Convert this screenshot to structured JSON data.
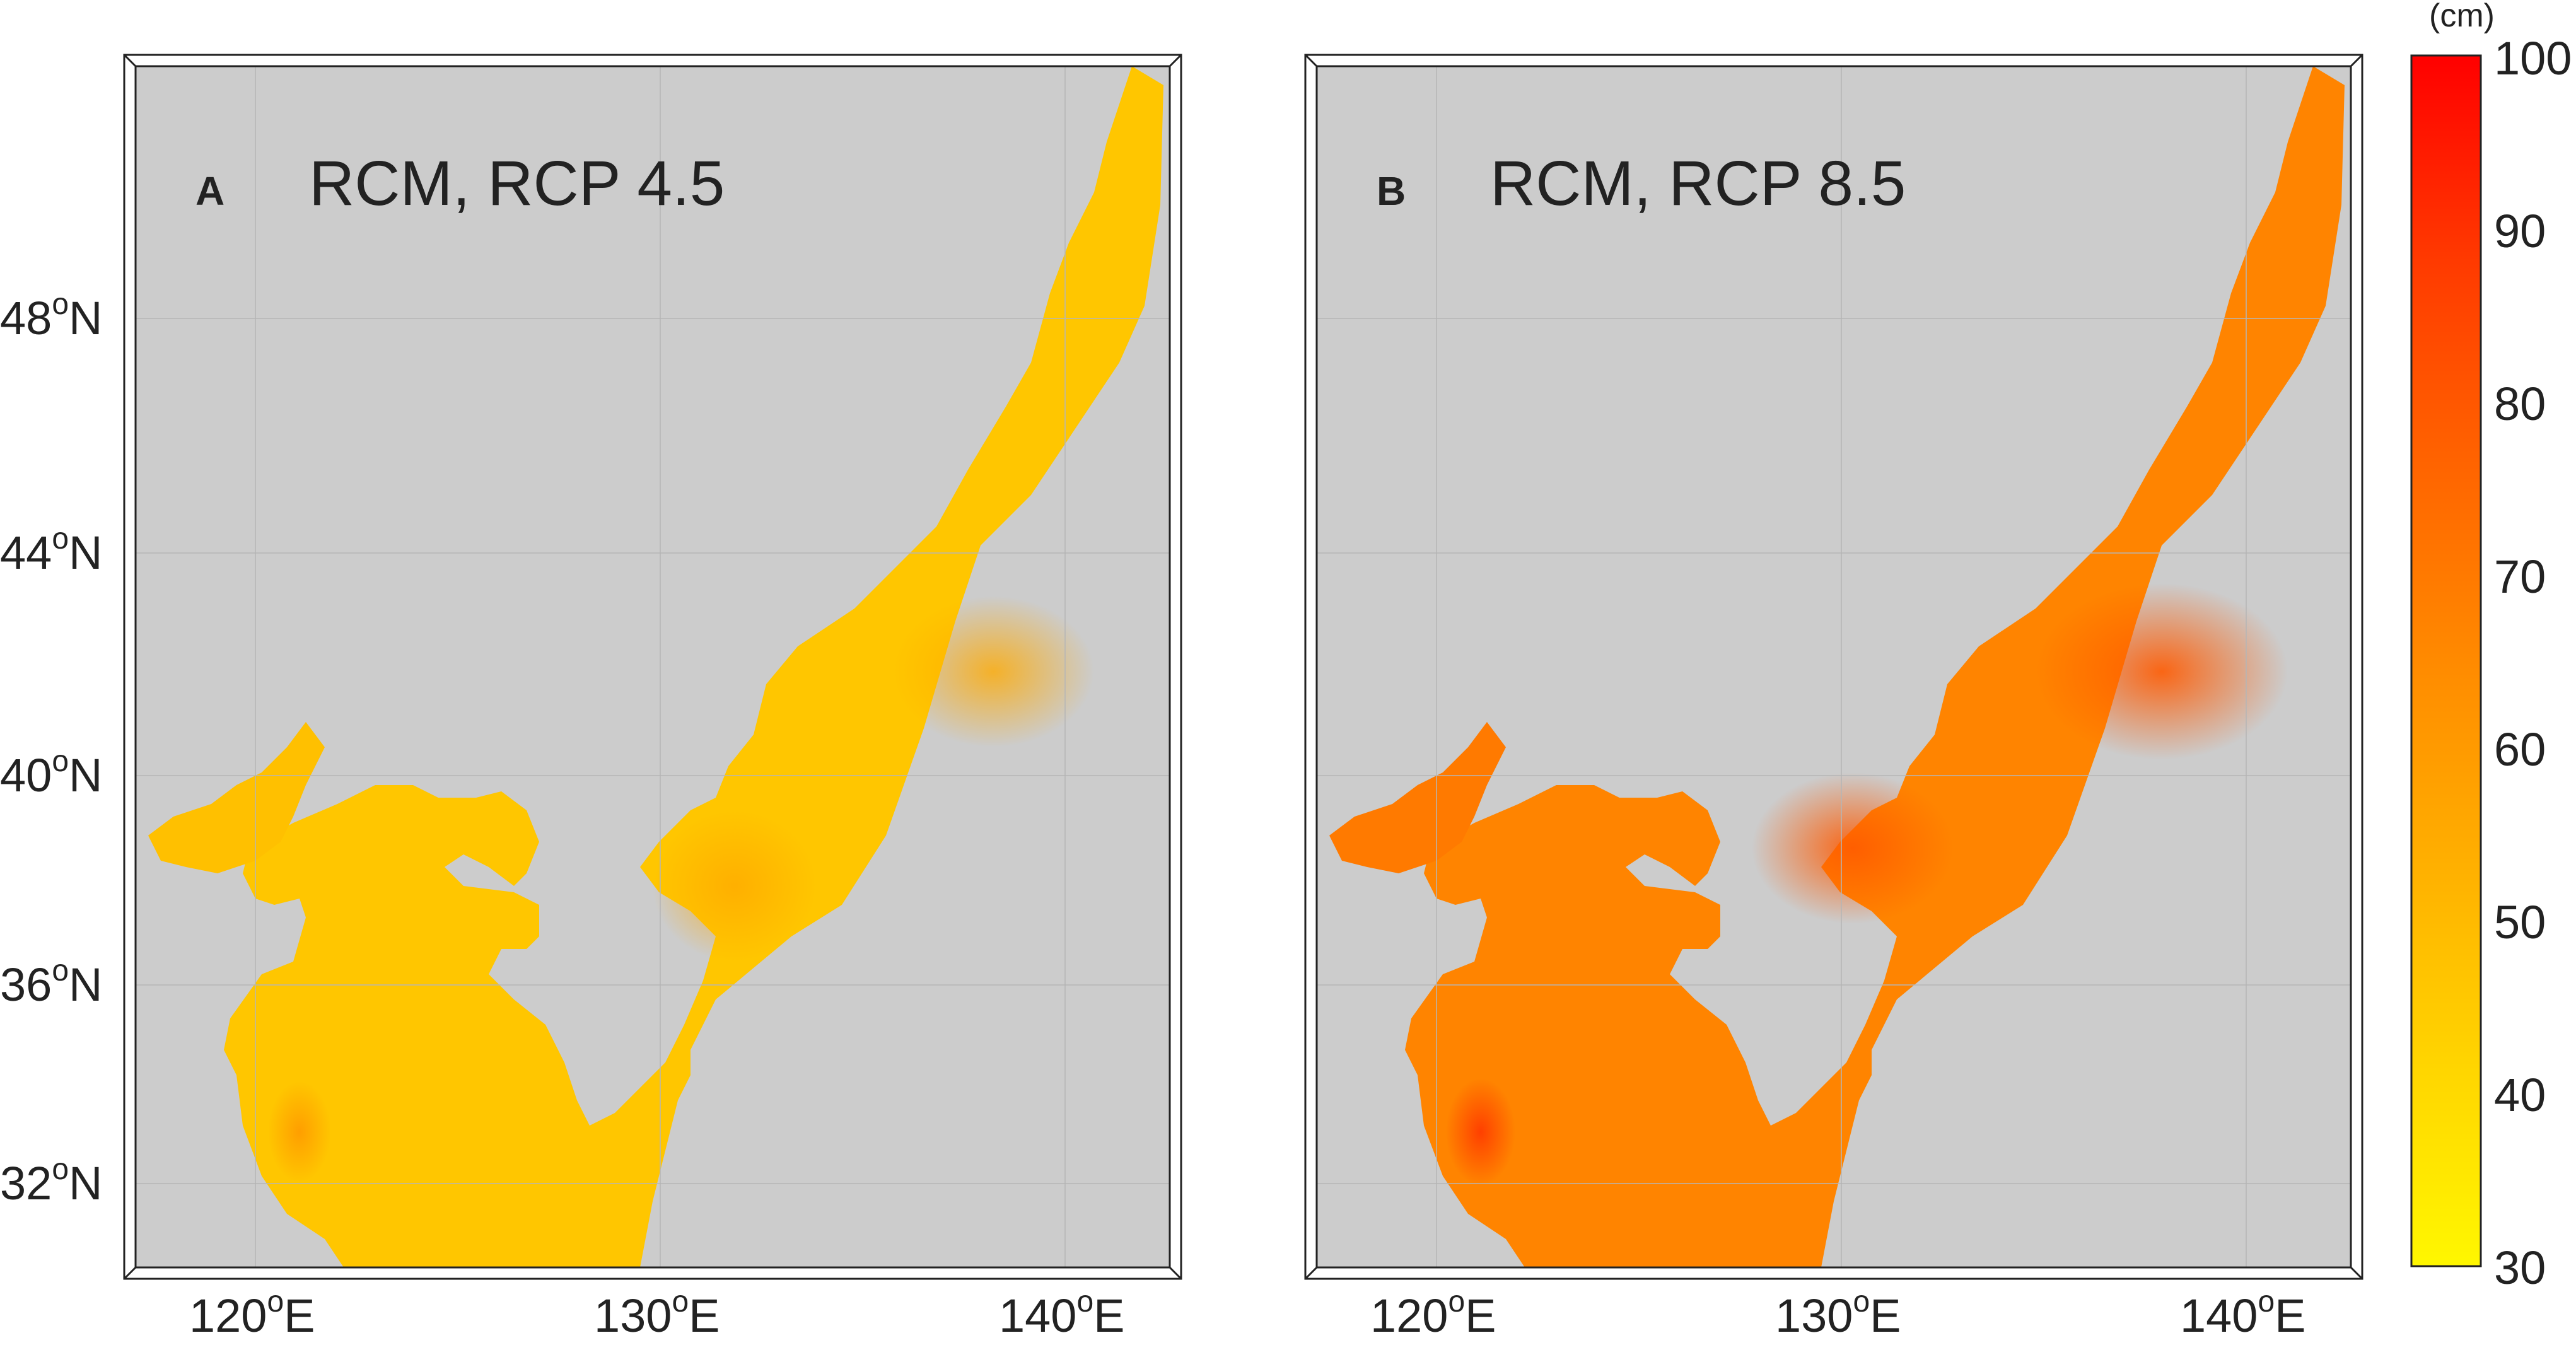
{
  "panels": [
    {
      "letter": "A",
      "title": "RCM, RCP 4.5"
    },
    {
      "letter": "B",
      "title": "RCM, RCP 8.5"
    }
  ],
  "lat_labels": [
    {
      "deg": "48",
      "hemi": "N",
      "lat": 48
    },
    {
      "deg": "44",
      "hemi": "N",
      "lat": 44
    },
    {
      "deg": "40",
      "hemi": "N",
      "lat": 40
    },
    {
      "deg": "36",
      "hemi": "N",
      "lat": 36
    },
    {
      "deg": "32",
      "hemi": "N",
      "lat": 32
    }
  ],
  "lon_labels": [
    {
      "deg": "120",
      "hemi": "E",
      "lon": 120
    },
    {
      "deg": "130",
      "hemi": "E",
      "lon": 130
    },
    {
      "deg": "140",
      "hemi": "E",
      "lon": 140
    }
  ],
  "colorbar": {
    "unit": "(cm)",
    "min": 30,
    "max": 100,
    "ticks": [
      "100",
      "90",
      "80",
      "70",
      "60",
      "50",
      "40",
      "30"
    ],
    "colors": [
      "#fff700",
      "#ffd400",
      "#ffb000",
      "#ff8a00",
      "#ff6200",
      "#ff3a00",
      "#ff0000"
    ]
  },
  "chart_data": {
    "type": "heatmap",
    "description_fields": false,
    "lon_range": [
      117,
      142
    ],
    "lat_range": [
      30.5,
      50.5
    ],
    "color_range": [
      30,
      100
    ],
    "unit": "cm",
    "panels": [
      {
        "letter": "A",
        "title": "RCM, RCP 4.5",
        "typical_value": 48,
        "land_color": "#cccccc",
        "hotspots": [
          {
            "lon": 136.5,
            "lat": 42.0,
            "value": 52
          },
          {
            "lon": 131.5,
            "lat": 37.5,
            "value": 53
          },
          {
            "lon": 121.5,
            "lat": 33.0,
            "value": 58
          }
        ]
      },
      {
        "letter": "B",
        "title": "RCM, RCP 8.5",
        "typical_value": 64,
        "land_color": "#cccccc",
        "hotspots": [
          {
            "lon": 136.5,
            "lat": 42.0,
            "value": 70
          },
          {
            "lon": 129.5,
            "lat": 39.0,
            "value": 68
          },
          {
            "lon": 121.5,
            "lat": 33.0,
            "value": 76
          }
        ]
      }
    ]
  }
}
